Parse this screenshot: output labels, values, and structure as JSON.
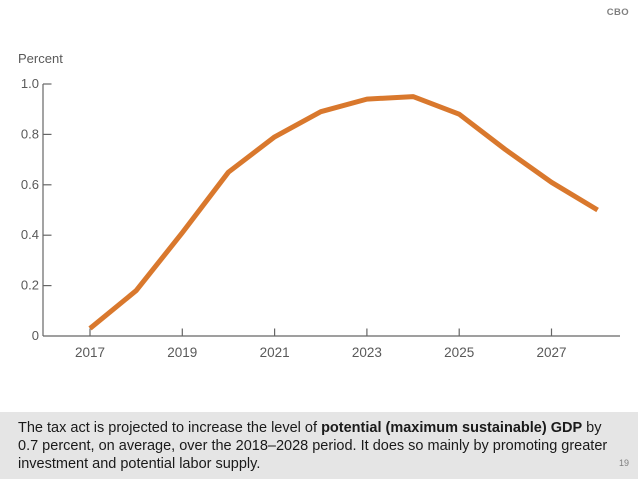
{
  "header": {
    "brand": "CBO"
  },
  "chart_data": {
    "type": "line",
    "title": "",
    "ylabel": "Percent",
    "xlabel": "",
    "x": [
      2017,
      2018,
      2019,
      2020,
      2021,
      2022,
      2023,
      2024,
      2025,
      2026,
      2027,
      2028
    ],
    "values": [
      0.03,
      0.18,
      0.41,
      0.65,
      0.79,
      0.89,
      0.94,
      0.95,
      0.88,
      0.74,
      0.61,
      0.5
    ],
    "x_tick_values": [
      2017,
      2019,
      2021,
      2023,
      2025,
      2027
    ],
    "x_tick_labels": [
      "2017",
      "2019",
      "2021",
      "2023",
      "2025",
      "2027"
    ],
    "y_tick_values": [
      0,
      0.2,
      0.4,
      0.6,
      0.8,
      1.0
    ],
    "y_tick_labels": [
      "0",
      "0.2",
      "0.4",
      "0.6",
      "0.8",
      "1.0"
    ],
    "xlim": [
      2017,
      2028
    ],
    "ylim": [
      0,
      1.0
    ],
    "grid": false,
    "legend": "none",
    "line_color": "#D9782D",
    "axis_color": "#666666",
    "label_color": "#595959"
  },
  "caption": {
    "part1": "The tax act is projected to increase the level of ",
    "bold": "potential (maximum sustainable) GDP",
    "part2": " by 0.7 percent, on average, over the 2018–2028 period. It does so mainly by promoting greater investment and potential labor supply."
  },
  "footer": {
    "page_number": "19"
  }
}
